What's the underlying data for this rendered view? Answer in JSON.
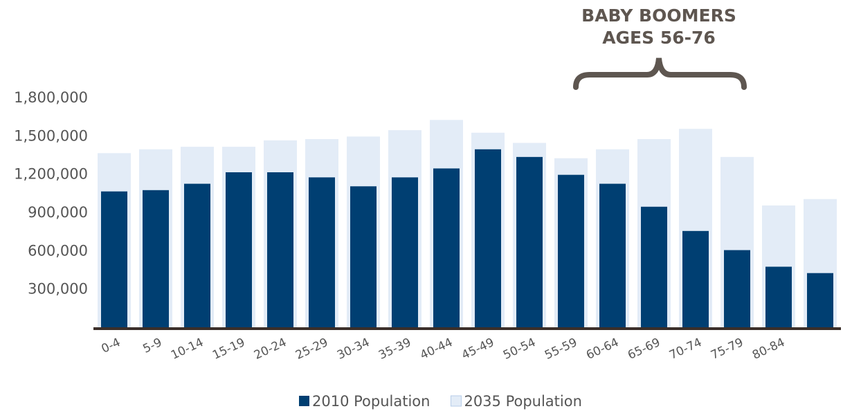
{
  "chart_data": {
    "type": "bar",
    "annotation": [
      "BABY BOOMERS",
      "AGES 56-76"
    ],
    "categories": [
      "0-4",
      "5-9",
      "10-14",
      "15-19",
      "20-24",
      "25-29",
      "30-34",
      "35-39",
      "40-44",
      "45-49",
      "50-54",
      "55-59",
      "60-64",
      "65-69",
      "70-74",
      "75-79",
      "80-84",
      null
    ],
    "series": [
      {
        "name": "2010 Population",
        "color": "#003f72",
        "values": [
          1070000,
          1080000,
          1130000,
          1220000,
          1220000,
          1180000,
          1110000,
          1180000,
          1250000,
          1400000,
          1340000,
          1200000,
          1130000,
          950000,
          760000,
          610000,
          480000,
          430000
        ]
      },
      {
        "name": "2035 Population",
        "color": "#e3ecf7",
        "values": [
          1370000,
          1400000,
          1420000,
          1420000,
          1470000,
          1480000,
          1500000,
          1550000,
          1630000,
          1530000,
          1450000,
          1330000,
          1400000,
          1480000,
          1560000,
          1340000,
          960000,
          1010000
        ]
      }
    ],
    "ylim": [
      0,
      1800000
    ],
    "yticks": [
      {
        "value": 300000,
        "label": "300,000"
      },
      {
        "value": 600000,
        "label": "600,000"
      },
      {
        "value": 900000,
        "label": "900,000"
      },
      {
        "value": 1200000,
        "label": "1,200,000"
      },
      {
        "value": 1500000,
        "label": "1,500,000"
      },
      {
        "value": 1800000,
        "label": "1,800,000"
      }
    ],
    "grid": false,
    "legend": "bottom"
  }
}
